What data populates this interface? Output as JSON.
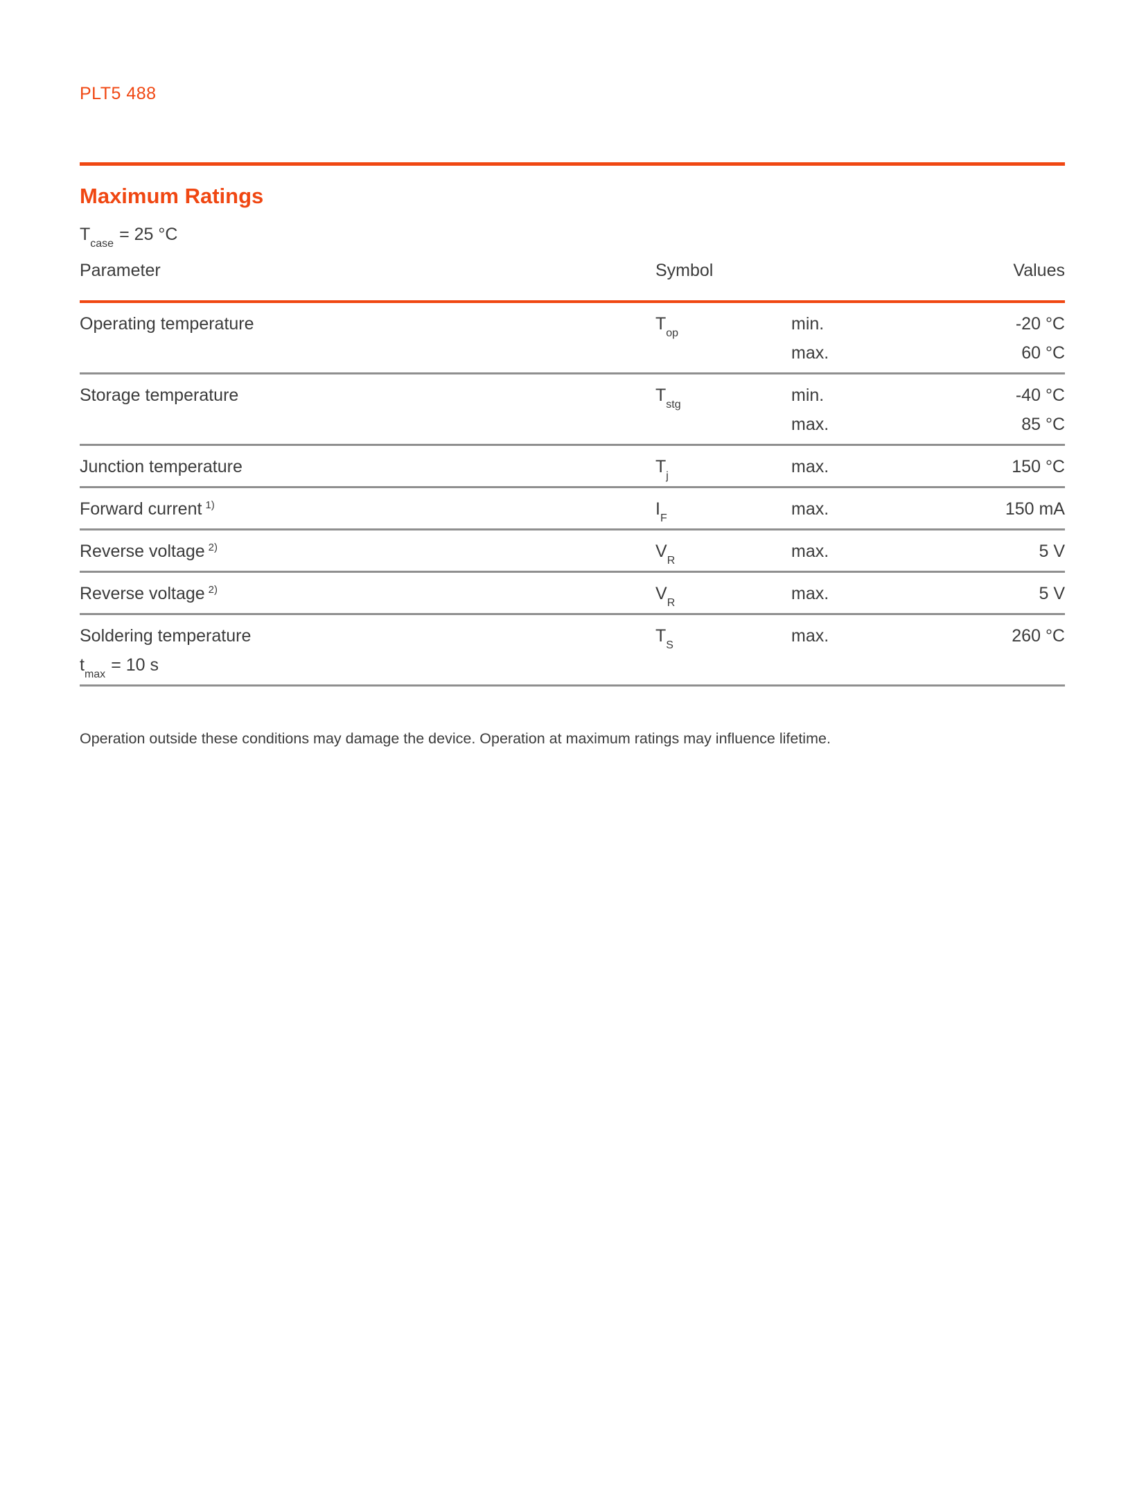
{
  "colors": {
    "accent": "#F04712",
    "text": "#3B3B3B",
    "separator": "#8F8F8F"
  },
  "header": {
    "doc_id": "PLT5 488"
  },
  "section": {
    "title": "Maximum Ratings"
  },
  "condition": {
    "base": "T",
    "sub": "case",
    "rest": "= 25 °C"
  },
  "table": {
    "headers": {
      "parameter": "Parameter",
      "symbol": "Symbol",
      "values": "Values"
    },
    "rows": [
      {
        "parameter": "Operating temperature",
        "symbol_base": "T",
        "symbol_sub": "op",
        "entries": [
          {
            "qualifier": "min.",
            "value": "-20 °C"
          },
          {
            "qualifier": "max.",
            "value": "60 °C"
          }
        ]
      },
      {
        "parameter": "Storage temperature",
        "symbol_base": "T",
        "symbol_sub": "stg",
        "entries": [
          {
            "qualifier": "min.",
            "value": "-40 °C"
          },
          {
            "qualifier": "max.",
            "value": "85 °C"
          }
        ]
      },
      {
        "parameter": "Junction temperature",
        "symbol_base": "T",
        "symbol_sub": "j",
        "entries": [
          {
            "qualifier": "max.",
            "value": "150 °C"
          }
        ]
      },
      {
        "parameter": "Forward current",
        "param_sup": "1)",
        "symbol_base": "I",
        "symbol_sub": "F",
        "entries": [
          {
            "qualifier": "max.",
            "value": "150 mA"
          }
        ]
      },
      {
        "parameter": "Reverse voltage",
        "param_sup": "2)",
        "symbol_base": "V",
        "symbol_sub": "R",
        "entries": [
          {
            "qualifier": "max.",
            "value": "5 V"
          }
        ]
      },
      {
        "parameter": "Reverse voltage",
        "param_sup": "2)",
        "symbol_base": "V",
        "symbol_sub": "R",
        "entries": [
          {
            "qualifier": "max.",
            "value": "5 V"
          }
        ]
      },
      {
        "parameter": "Soldering temperature",
        "param_line2_base": "t",
        "param_line2_sub": "max",
        "param_line2_rest": "= 10 s",
        "symbol_base": "T",
        "symbol_sub": "S",
        "entries": [
          {
            "qualifier": "max.",
            "value": "260 °C"
          }
        ]
      }
    ]
  },
  "note": "Operation outside these conditions may damage the device. Operation at maximum ratings may influence lifetime."
}
